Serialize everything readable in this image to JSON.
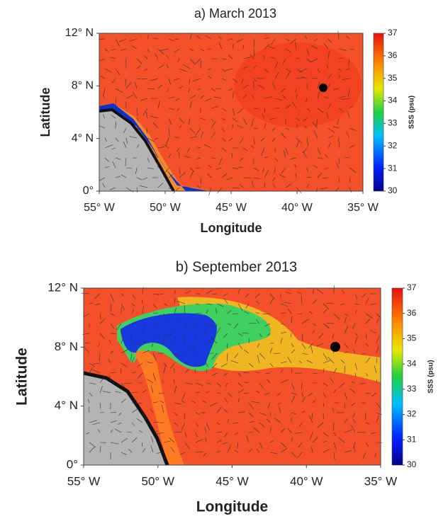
{
  "panels": [
    {
      "title": "a) March 2013",
      "xlabel": "Longitude",
      "ylabel": "Latitude",
      "xlim": [
        -55,
        -35
      ],
      "ylim": [
        0,
        12
      ],
      "xticks": [
        {
          "value": -55,
          "label": "55° W"
        },
        {
          "value": -50,
          "label": "50° W"
        },
        {
          "value": -45,
          "label": "45° W"
        },
        {
          "value": -40,
          "label": "40° W"
        },
        {
          "value": -35,
          "label": "35° W"
        }
      ],
      "yticks": [
        {
          "value": 0,
          "label": "0°"
        },
        {
          "value": 4,
          "label": "4° N"
        },
        {
          "value": 8,
          "label": "8° N"
        },
        {
          "value": 12,
          "label": "12° N"
        }
      ],
      "colorbar": {
        "label": "SSS (psu)",
        "lim": [
          30,
          37
        ],
        "ticks": [
          30,
          31,
          32,
          33,
          34,
          35,
          36,
          37
        ]
      }
    },
    {
      "title": "b) September 2013",
      "xlabel": "Longitude",
      "ylabel": "Latitude",
      "xlim": [
        -55,
        -35
      ],
      "ylim": [
        0,
        12
      ],
      "xticks": [
        {
          "value": -55,
          "label": "55° W"
        },
        {
          "value": -50,
          "label": "50° W"
        },
        {
          "value": -45,
          "label": "45° W"
        },
        {
          "value": -40,
          "label": "40° W"
        },
        {
          "value": -35,
          "label": "35° W"
        }
      ],
      "yticks": [
        {
          "value": 0,
          "label": "0°"
        },
        {
          "value": 4,
          "label": "4° N"
        },
        {
          "value": 8,
          "label": "8° N"
        },
        {
          "value": 12,
          "label": "12° N"
        }
      ],
      "colorbar": {
        "label": "SSS (psu)",
        "lim": [
          30,
          37
        ],
        "ticks": [
          30,
          31,
          32,
          33,
          34,
          35,
          36,
          37
        ]
      }
    }
  ]
}
